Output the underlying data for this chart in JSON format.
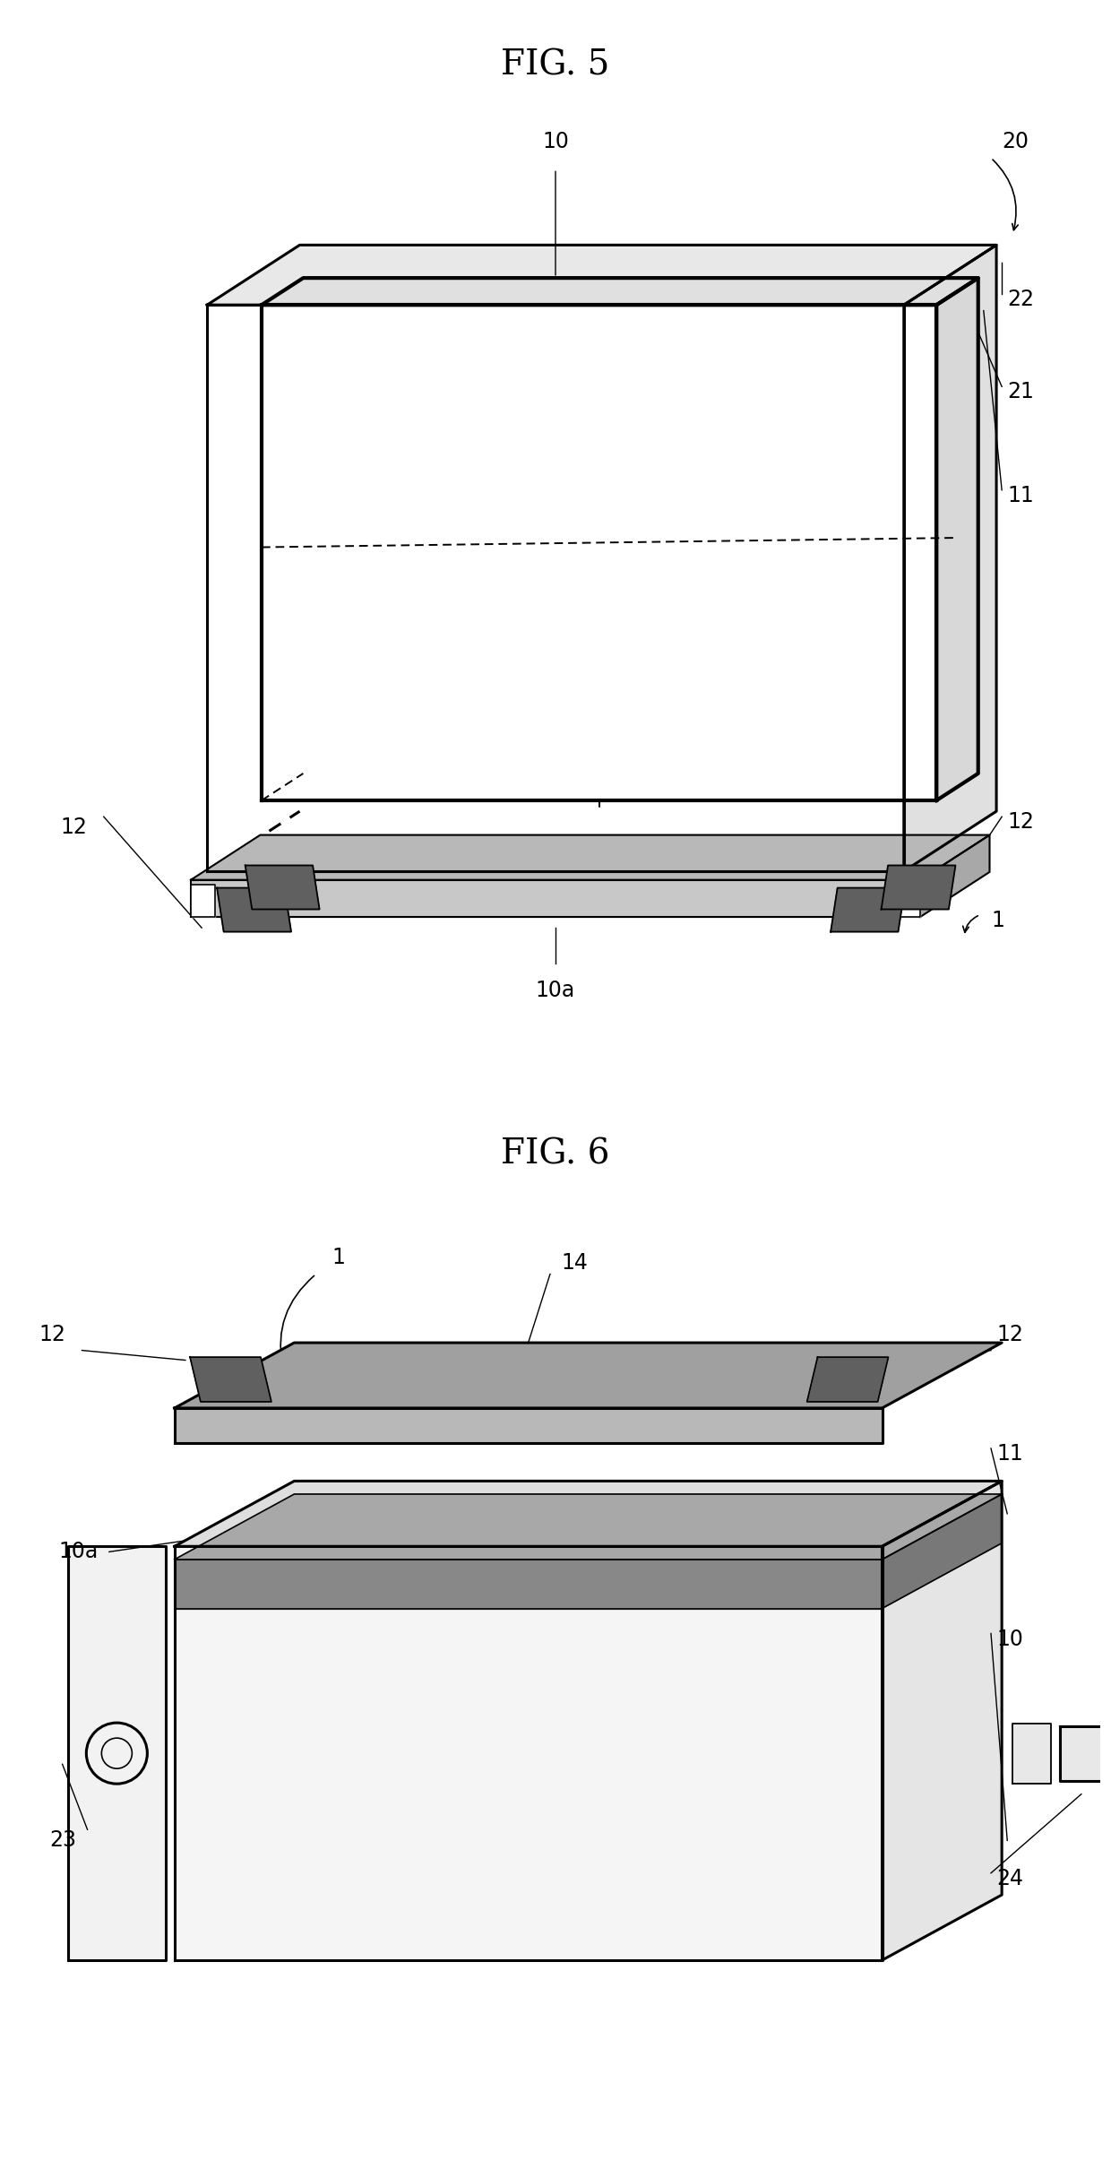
{
  "fig5_title": "FIG. 5",
  "fig6_title": "FIG. 6",
  "bg_color": "#ffffff",
  "lc": "#000000",
  "gray_dark": "#555555",
  "gray_med": "#888888",
  "gray_light": "#d0d0d0",
  "gray_fill": "#f0f0f0",
  "clip_color": "#707070",
  "shelf_color": "#909090",
  "rail_color": "#b0b0b0"
}
